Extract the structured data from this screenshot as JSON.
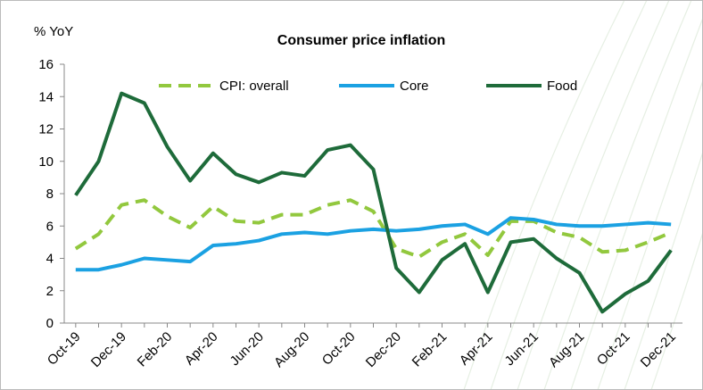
{
  "chart_data": {
    "type": "line",
    "title": "Consumer price inflation",
    "y_label": "% YoY",
    "categories": [
      "Oct-19",
      null,
      "Dec-19",
      null,
      "Feb-20",
      null,
      "Apr-20",
      null,
      "Jun-20",
      null,
      "Aug-20",
      null,
      "Oct-20",
      null,
      "Dec-20",
      null,
      "Feb-21",
      null,
      "Apr-21",
      null,
      "Jun-21",
      null,
      "Aug-21",
      null,
      "Oct-21",
      null,
      "Dec-21"
    ],
    "series": [
      {
        "name": "CPI: overall",
        "color": "#92c83e",
        "dashed": true,
        "values": [
          4.6,
          5.5,
          7.3,
          7.6,
          6.6,
          5.9,
          7.2,
          6.3,
          6.2,
          6.7,
          6.7,
          7.3,
          7.6,
          6.9,
          4.6,
          4.1,
          5.0,
          5.5,
          4.2,
          6.3,
          6.3,
          5.6,
          5.3,
          4.4,
          4.5,
          5.0,
          5.6
        ]
      },
      {
        "name": "Core",
        "color": "#1ba1e2",
        "values": [
          3.3,
          3.3,
          3.6,
          4.0,
          3.9,
          3.8,
          4.8,
          4.9,
          5.1,
          5.5,
          5.6,
          5.5,
          5.7,
          5.8,
          5.7,
          5.8,
          6.0,
          6.1,
          5.5,
          6.5,
          6.4,
          6.1,
          6.0,
          6.0,
          6.1,
          6.2,
          6.1
        ]
      },
      {
        "name": "Food",
        "color": "#1e6b3a",
        "values": [
          7.9,
          10.0,
          14.2,
          13.6,
          10.9,
          8.8,
          10.5,
          9.2,
          8.7,
          9.3,
          9.1,
          10.7,
          11.0,
          9.5,
          3.4,
          1.9,
          3.9,
          4.9,
          1.9,
          5.0,
          5.2,
          4.0,
          3.1,
          0.7,
          1.8,
          2.6,
          4.5
        ]
      }
    ],
    "ylim": [
      0,
      16
    ],
    "yticks": [
      0,
      2,
      4,
      6,
      8,
      10,
      12,
      14,
      16
    ],
    "legend": "top"
  }
}
